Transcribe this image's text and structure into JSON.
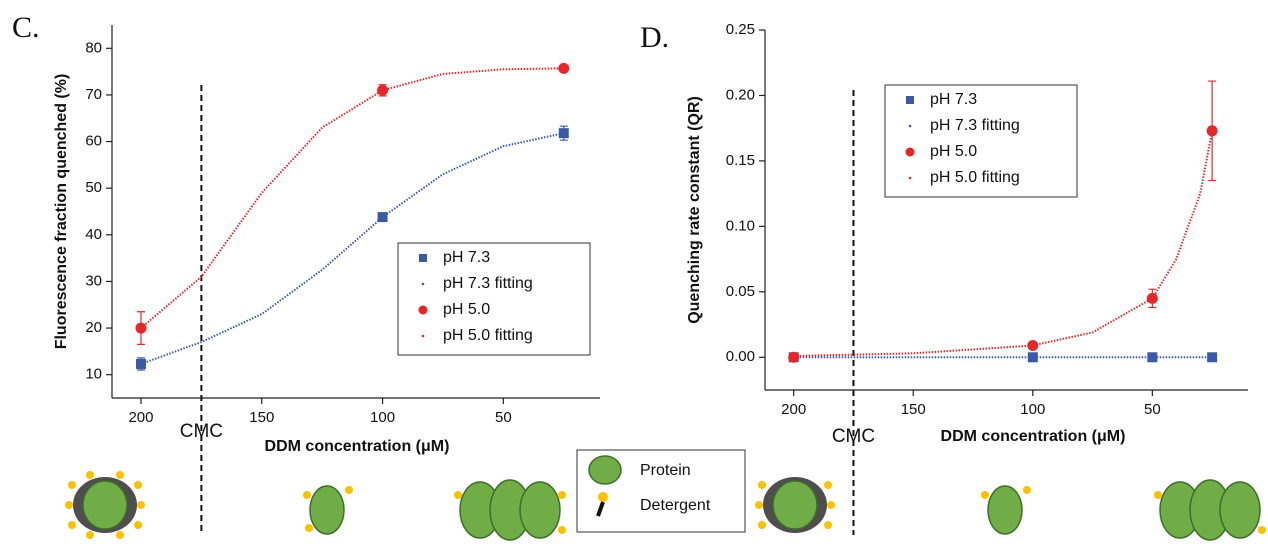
{
  "chart_data": [
    {
      "type": "scatter",
      "title": "C.",
      "x_label": "DDM concentration (μM)",
      "y_label": "Fluorescence fraction quenched (%)",
      "xlim": [
        212,
        10
      ],
      "xticks": [
        200,
        150,
        100,
        50
      ],
      "ylim": [
        5,
        85
      ],
      "yticks": [
        10,
        20,
        30,
        40,
        50,
        60,
        70,
        80
      ],
      "legend": "lower right",
      "cmc": {
        "label": "CMC",
        "x": 175
      },
      "series": [
        {
          "name": "pH 7.3",
          "color": "#3a5aa8",
          "marker": "square",
          "x": [
            200,
            100,
            25
          ],
          "values": [
            12.3,
            43.8,
            61.8
          ],
          "errors": [
            1.3,
            0.6,
            1.5
          ]
        },
        {
          "name": "pH 7.3 fitting",
          "color": "#3a5aa8",
          "marker": "dot",
          "x": [
            200,
            175,
            150,
            125,
            100,
            75,
            50,
            25
          ],
          "values": [
            12.3,
            17,
            23,
            32.5,
            43.8,
            53,
            59,
            61.8
          ]
        },
        {
          "name": "pH 5.0",
          "color": "#e8262a",
          "marker": "circle",
          "x": [
            200,
            100,
            25
          ],
          "values": [
            20,
            71,
            75.7
          ],
          "errors": [
            3.5,
            1.2,
            0.5
          ]
        },
        {
          "name": "pH 5.0 fitting",
          "color": "#e8262a",
          "marker": "dot",
          "x": [
            200,
            175,
            150,
            125,
            100,
            75,
            50,
            25
          ],
          "values": [
            20,
            31,
            49,
            63,
            71,
            74.5,
            75.5,
            75.7
          ]
        }
      ]
    },
    {
      "type": "scatter",
      "title": "D.",
      "x_label": "DDM concentration (μM)",
      "y_label": "Quenching rate constant (QR)",
      "xlim": [
        212,
        10
      ],
      "xticks": [
        200,
        150,
        100,
        50
      ],
      "ylim": [
        -0.025,
        0.25
      ],
      "yticks": [
        {
          "value": 0,
          "label": "0.00"
        },
        {
          "value": 0.05,
          "label": "0.05"
        },
        {
          "value": 0.1,
          "label": "0.10"
        },
        {
          "value": 0.15,
          "label": "0.15"
        },
        {
          "value": 0.2,
          "label": "0.20"
        },
        {
          "value": 0.25,
          "label": "0.25"
        }
      ],
      "legend": "upper left",
      "cmc": {
        "label": "CMC",
        "x": 175
      },
      "series": [
        {
          "name": "pH 7.3",
          "color": "#3a5aa8",
          "marker": "square",
          "x": [
            200,
            100,
            50,
            25
          ],
          "values": [
            0,
            0,
            0,
            0
          ]
        },
        {
          "name": "pH 7.3 fitting",
          "color": "#3a5aa8",
          "marker": "dot",
          "x": [
            200,
            150,
            100,
            50,
            25
          ],
          "values": [
            0,
            0,
            0,
            0,
            0
          ]
        },
        {
          "name": "pH 5.0",
          "color": "#e8262a",
          "marker": "circle",
          "x": [
            200,
            100,
            50,
            25
          ],
          "values": [
            0,
            0.009,
            0.045,
            0.173
          ],
          "errors": [
            0,
            0.001,
            0.007,
            0.038
          ]
        },
        {
          "name": "pH 5.0 fitting",
          "color": "#e8262a",
          "marker": "dot",
          "x": [
            200,
            150,
            100,
            75,
            50,
            40,
            30,
            25
          ],
          "values": [
            0.001,
            0.003,
            0.009,
            0.019,
            0.045,
            0.075,
            0.125,
            0.173
          ]
        }
      ]
    }
  ],
  "diagram": {
    "legend": [
      "Protein",
      "Detergent"
    ]
  }
}
